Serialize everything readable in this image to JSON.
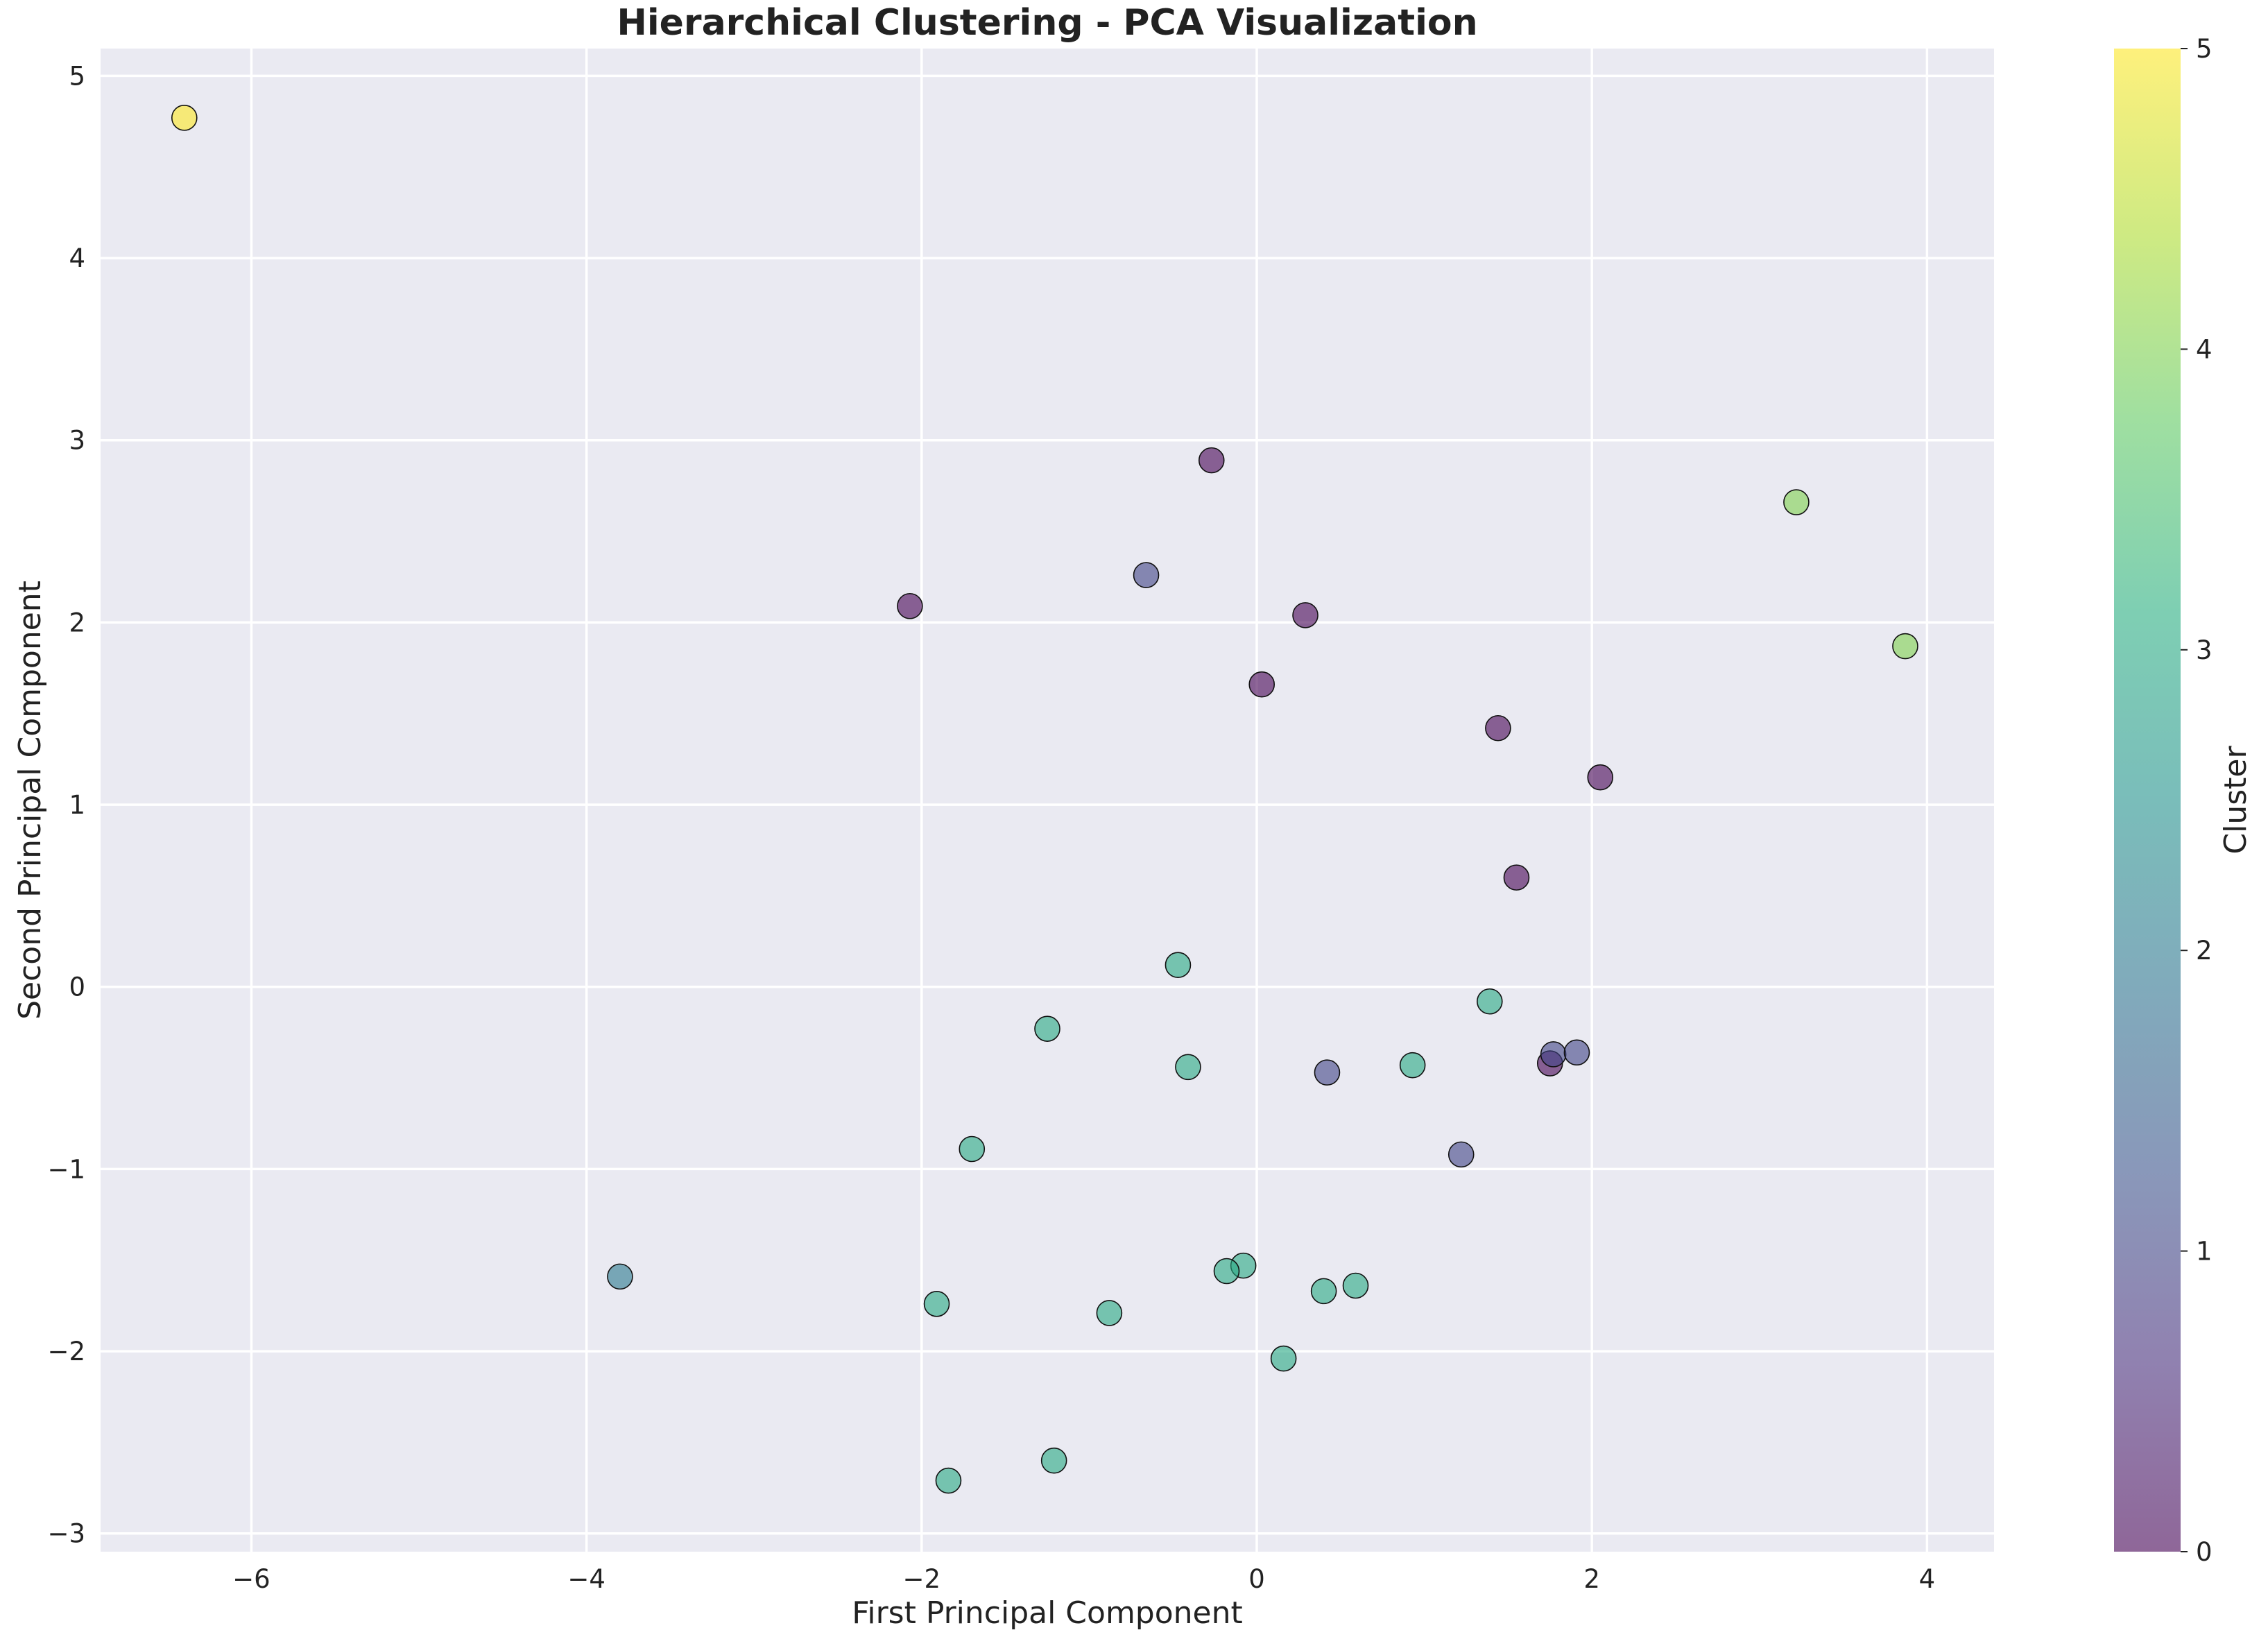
{
  "chart_data": {
    "type": "scatter",
    "title": "Hierarchical Clustering - PCA Visualization",
    "xlabel": "First Principal Component",
    "ylabel": "Second Principal Component",
    "xlim": [
      -6.9,
      4.4
    ],
    "ylim": [
      -3.1,
      5.15
    ],
    "xticks": [
      -6,
      -4,
      -2,
      0,
      2,
      4
    ],
    "yticks": [
      -3,
      -2,
      -1,
      0,
      1,
      2,
      3,
      4,
      5
    ],
    "grid": true,
    "colorbar": {
      "label": "Cluster",
      "range": [
        0,
        5
      ],
      "ticks": [
        0,
        1,
        2,
        3,
        4,
        5
      ],
      "colormap": "viridis",
      "alpha": 0.6
    },
    "points": [
      {
        "x": -6.4,
        "y": 4.77,
        "cluster": 5
      },
      {
        "x": 3.22,
        "y": 2.66,
        "cluster": 4
      },
      {
        "x": 3.87,
        "y": 1.87,
        "cluster": 4
      },
      {
        "x": -0.27,
        "y": 2.89,
        "cluster": 0
      },
      {
        "x": -2.07,
        "y": 2.09,
        "cluster": 0
      },
      {
        "x": 0.29,
        "y": 2.04,
        "cluster": 0
      },
      {
        "x": 0.03,
        "y": 1.66,
        "cluster": 0
      },
      {
        "x": 1.44,
        "y": 1.42,
        "cluster": 0
      },
      {
        "x": 2.05,
        "y": 1.15,
        "cluster": 0
      },
      {
        "x": 1.55,
        "y": 0.6,
        "cluster": 0
      },
      {
        "x": 1.75,
        "y": -0.42,
        "cluster": 0
      },
      {
        "x": -0.66,
        "y": 2.26,
        "cluster": 1
      },
      {
        "x": 1.77,
        "y": -0.37,
        "cluster": 1
      },
      {
        "x": 1.91,
        "y": -0.36,
        "cluster": 1
      },
      {
        "x": 0.42,
        "y": -0.47,
        "cluster": 1
      },
      {
        "x": 1.22,
        "y": -0.92,
        "cluster": 1
      },
      {
        "x": -3.8,
        "y": -1.59,
        "cluster": 2
      },
      {
        "x": -0.47,
        "y": 0.12,
        "cluster": 3
      },
      {
        "x": 1.39,
        "y": -0.08,
        "cluster": 3
      },
      {
        "x": -1.25,
        "y": -0.23,
        "cluster": 3
      },
      {
        "x": -0.41,
        "y": -0.44,
        "cluster": 3
      },
      {
        "x": 0.93,
        "y": -0.43,
        "cluster": 3
      },
      {
        "x": -1.7,
        "y": -0.89,
        "cluster": 3
      },
      {
        "x": -0.08,
        "y": -1.53,
        "cluster": 3
      },
      {
        "x": -0.18,
        "y": -1.56,
        "cluster": 3
      },
      {
        "x": 0.59,
        "y": -1.64,
        "cluster": 3
      },
      {
        "x": 0.4,
        "y": -1.67,
        "cluster": 3
      },
      {
        "x": -1.91,
        "y": -1.74,
        "cluster": 3
      },
      {
        "x": -0.88,
        "y": -1.79,
        "cluster": 3
      },
      {
        "x": 0.16,
        "y": -2.04,
        "cluster": 3
      },
      {
        "x": -1.21,
        "y": -2.6,
        "cluster": 3
      },
      {
        "x": -1.84,
        "y": -2.71,
        "cluster": 3
      }
    ]
  }
}
